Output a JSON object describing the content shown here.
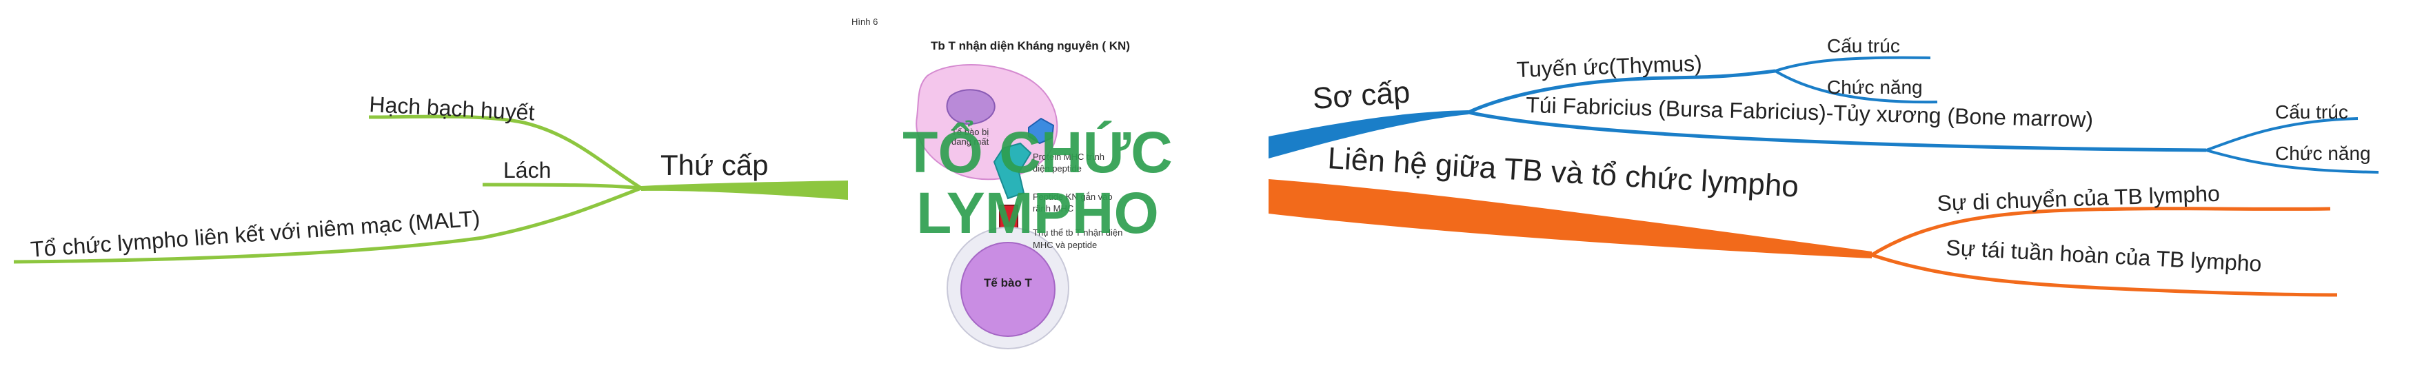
{
  "central": {
    "figure_caption": "Hình 6",
    "figure_title": "Tb T  nhận diện  Kháng  nguyên ( KN)",
    "cell_labels": {
      "apc": "Tế bào bị",
      "apc_sub": "đang mất",
      "tcell": "Tế bào T"
    },
    "annotations": {
      "a1_line1": "Protein MHC  trình",
      "a1_line2": "diện peptide",
      "a2_line1": "Peptide KN gắn  vào",
      "a2_line2": "rãnh MHC",
      "a3_line1": "Thụ thể tb T nhận diện",
      "a3_line2": "MHC và peptide"
    },
    "title_line1": "TỔ CHỨC",
    "title_line2": "LYMPHO",
    "colors": {
      "title": "#2e9e4f",
      "green_branch": "#8dc63f",
      "blue_branch": "#1a7ec8",
      "orange_branch": "#f26a1b"
    }
  },
  "left": {
    "branch": {
      "label": "Thứ cấp",
      "children": [
        "Hạch bạch huyết",
        "Lách",
        "Tổ chức lympho liên kết với niêm mạc (MALT)"
      ]
    }
  },
  "right": {
    "primary": {
      "label": "Sơ cấp",
      "children": [
        {
          "label": "Tuyến ức(Thymus)",
          "children": [
            "Cấu trúc",
            "Chức năng"
          ]
        },
        {
          "label": "Túi Fabricius (Bursa Fabricius)-Tủy xương (Bone marrow)",
          "children": [
            "Cấu trúc",
            "Chức năng"
          ]
        }
      ]
    },
    "relation": {
      "label": "Liên hệ giữa TB và tổ chức lympho",
      "children": [
        "Sự di chuyển của TB lympho",
        "Sự tái tuần hoàn của TB lympho"
      ]
    }
  }
}
